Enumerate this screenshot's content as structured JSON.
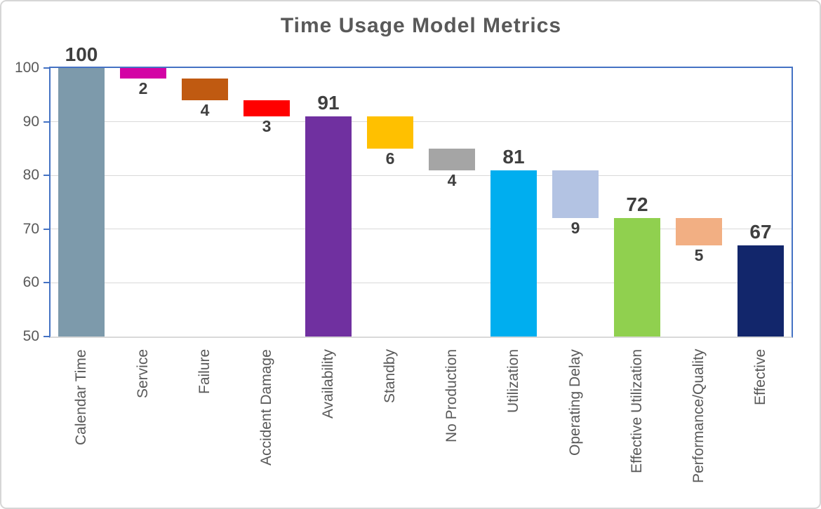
{
  "chart_data": {
    "type": "bar",
    "subtype": "waterfall",
    "title": "Time Usage Model Metrics",
    "xlabel": "",
    "ylabel": "",
    "ylim": [
      50,
      100
    ],
    "yticks": [
      50,
      60,
      70,
      80,
      90,
      100
    ],
    "grid": true,
    "legend": false,
    "categories": [
      "Calendar Time",
      "Service",
      "Failure",
      "Accident Damage",
      "Availability",
      "Standby",
      "No Production",
      "Utilization",
      "Operating Delay",
      "Effective Utilization",
      "Performance/Quality",
      "Effective"
    ],
    "bars": [
      {
        "category": "Calendar Time",
        "kind": "total",
        "from": 50,
        "to": 100,
        "label": "100",
        "label_position": "above",
        "color": "#7D9AAB"
      },
      {
        "category": "Service",
        "kind": "decrease",
        "from": 98,
        "to": 100,
        "label": "2",
        "label_position": "below",
        "color": "#D303A5"
      },
      {
        "category": "Failure",
        "kind": "decrease",
        "from": 94,
        "to": 98,
        "label": "4",
        "label_position": "below",
        "color": "#C05A11"
      },
      {
        "category": "Accident Damage",
        "kind": "decrease",
        "from": 91,
        "to": 94,
        "label": "3",
        "label_position": "below",
        "color": "#FF0000"
      },
      {
        "category": "Availability",
        "kind": "total",
        "from": 50,
        "to": 91,
        "label": "91",
        "label_position": "above",
        "color": "#7030A0"
      },
      {
        "category": "Standby",
        "kind": "decrease",
        "from": 85,
        "to": 91,
        "label": "6",
        "label_position": "below",
        "color": "#FFC000"
      },
      {
        "category": "No Production",
        "kind": "decrease",
        "from": 81,
        "to": 85,
        "label": "4",
        "label_position": "below",
        "color": "#A5A5A5"
      },
      {
        "category": "Utilization",
        "kind": "total",
        "from": 50,
        "to": 81,
        "label": "81",
        "label_position": "above",
        "color": "#00AEEF"
      },
      {
        "category": "Operating Delay",
        "kind": "decrease",
        "from": 72,
        "to": 81,
        "label": "9",
        "label_position": "below",
        "color": "#B3C3E3"
      },
      {
        "category": "Effective Utilization",
        "kind": "total",
        "from": 50,
        "to": 72,
        "label": "72",
        "label_position": "above",
        "color": "#90D04F"
      },
      {
        "category": "Performance/Quality",
        "kind": "decrease",
        "from": 67,
        "to": 72,
        "label": "5",
        "label_position": "below",
        "color": "#F2AF83"
      },
      {
        "category": "Effective",
        "kind": "total",
        "from": 50,
        "to": 67,
        "label": "67",
        "label_position": "above",
        "color": "#12266B"
      }
    ],
    "colors": {
      "axis_line": "#4472C4",
      "gridline": "#D9D9D9",
      "axis_text": "#595959",
      "title_text": "#595959",
      "value_label_text": "#3F3F3F",
      "figure_border": "#D6D6D6",
      "background": "#FFFFFF"
    }
  }
}
